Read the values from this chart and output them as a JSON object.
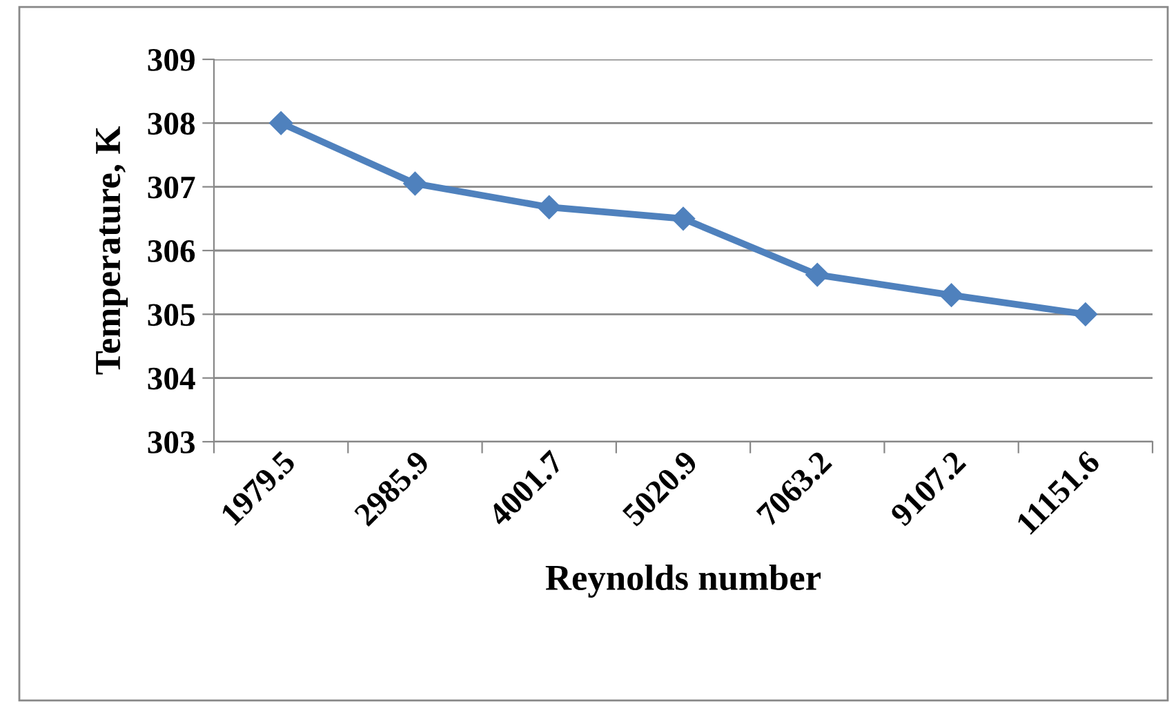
{
  "chart_data": {
    "type": "line",
    "xlabel": "Reynolds number",
    "ylabel": "Temperature, K",
    "categories": [
      "1979.5",
      "2985.9",
      "4001.7",
      "5020.9",
      "7063.2",
      "9107.2",
      "11151.6"
    ],
    "series": [
      {
        "color": "#4f81bd",
        "values": [
          308.0,
          307.05,
          306.68,
          306.5,
          305.62,
          305.3,
          305.0
        ]
      }
    ],
    "ylim": [
      303,
      309
    ],
    "yticks": [
      303,
      304,
      305,
      306,
      307,
      308,
      309
    ],
    "grid": "y",
    "marker": "diamond",
    "line_style": "solid",
    "legend": false
  }
}
